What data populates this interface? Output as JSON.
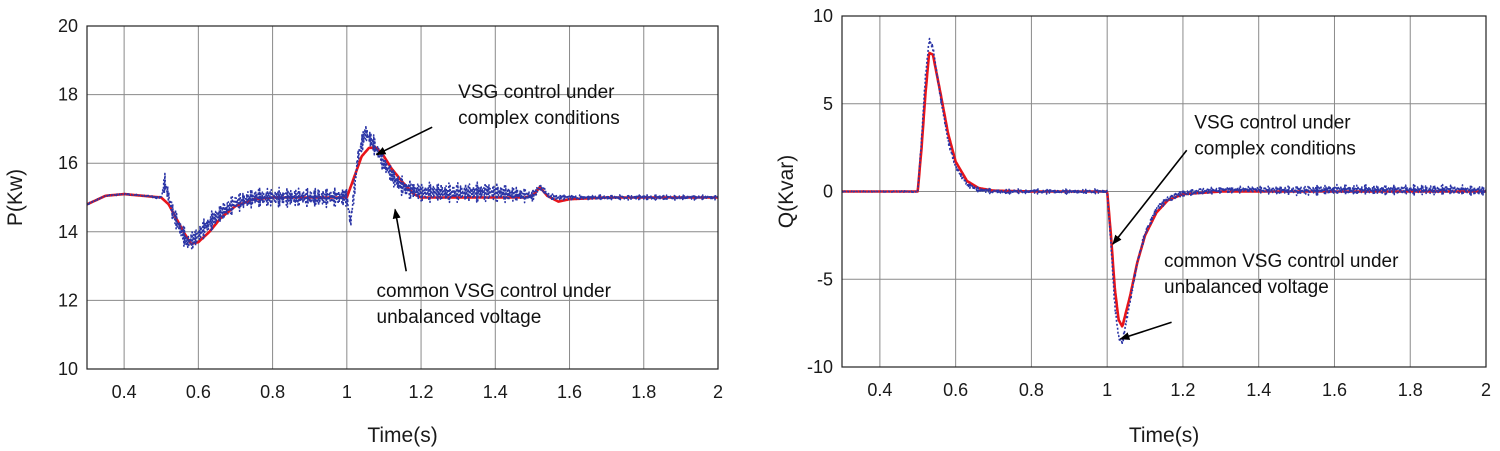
{
  "chart_data": [
    {
      "type": "line",
      "xlabel": "Time(s)",
      "ylabel": "P(Kw)",
      "xlim": [
        0.3,
        2
      ],
      "ylim": [
        10,
        20
      ],
      "xticks": [
        0.4,
        0.6,
        0.8,
        1,
        1.2,
        1.4,
        1.6,
        1.8,
        2
      ],
      "xtick_labels": [
        "0.4",
        "0.6",
        "0.8",
        "1",
        "1.2",
        "1.4",
        "1.6",
        "1.8",
        "2"
      ],
      "yticks": [
        10,
        12,
        14,
        16,
        18,
        20
      ],
      "ytick_labels": [
        "10",
        "12",
        "14",
        "16",
        "18",
        "20"
      ],
      "grid": true,
      "series": [
        {
          "name": "VSG control under complex conditions",
          "color": "#e8141a",
          "style": "solid",
          "x": [
            0.3,
            0.35,
            0.4,
            0.45,
            0.5,
            0.52,
            0.54,
            0.56,
            0.58,
            0.6,
            0.63,
            0.66,
            0.7,
            0.75,
            0.8,
            0.85,
            0.9,
            0.95,
            1.0,
            1.02,
            1.04,
            1.06,
            1.08,
            1.1,
            1.12,
            1.15,
            1.18,
            1.2,
            1.25,
            1.3,
            1.4,
            1.48,
            1.5,
            1.52,
            1.54,
            1.57,
            1.6,
            1.7,
            1.8,
            1.9,
            2.0
          ],
          "y": [
            14.8,
            15.05,
            15.1,
            15.05,
            15.0,
            14.8,
            14.4,
            14.0,
            13.65,
            13.7,
            14.0,
            14.4,
            14.75,
            14.95,
            15.0,
            15.0,
            15.0,
            15.0,
            15.0,
            15.6,
            16.2,
            16.45,
            16.45,
            16.2,
            15.85,
            15.45,
            15.1,
            15.0,
            15.0,
            15.0,
            15.0,
            15.0,
            15.05,
            15.3,
            15.05,
            14.88,
            14.95,
            15.0,
            15.0,
            15.0,
            15.0
          ]
        },
        {
          "name": "common VSG control under unbalanced voltage",
          "color": "#2b35a6",
          "style": "dotted",
          "x": [
            0.3,
            0.35,
            0.4,
            0.45,
            0.5,
            0.51,
            0.53,
            0.55,
            0.57,
            0.59,
            0.62,
            0.66,
            0.7,
            0.75,
            0.8,
            0.9,
            1.0,
            1.01,
            1.03,
            1.05,
            1.07,
            1.1,
            1.13,
            1.16,
            1.2,
            1.3,
            1.4,
            1.5,
            1.52,
            1.55,
            1.6,
            1.7,
            1.8,
            1.9,
            2.0
          ],
          "y": [
            14.8,
            15.05,
            15.1,
            15.05,
            15.0,
            15.45,
            14.6,
            14.1,
            13.7,
            13.8,
            14.15,
            14.55,
            14.85,
            15.0,
            15.0,
            15.0,
            15.0,
            14.25,
            16.2,
            16.9,
            16.6,
            16.0,
            15.5,
            15.25,
            15.15,
            15.15,
            15.15,
            15.05,
            15.3,
            15.0,
            15.0,
            15.0,
            15.0,
            15.0,
            15.0
          ],
          "noise_amplitude": [
            0.02,
            0.02,
            0.02,
            0.02,
            0.05,
            0.3,
            0.3,
            0.3,
            0.3,
            0.3,
            0.3,
            0.3,
            0.3,
            0.3,
            0.3,
            0.3,
            0.3,
            0.3,
            0.3,
            0.3,
            0.3,
            0.3,
            0.3,
            0.3,
            0.3,
            0.3,
            0.3,
            0.2,
            0.1,
            0.1,
            0.08,
            0.08,
            0.08,
            0.08,
            0.08
          ]
        }
      ],
      "annotations": [
        {
          "lines": [
            "VSG control under",
            "complex conditions"
          ],
          "x": 1.3,
          "y": 17.9,
          "arrow_to": [
            1.08,
            16.25
          ],
          "arrow_from": [
            1.23,
            17.05
          ]
        },
        {
          "lines": [
            "common VSG control under",
            "unbalanced voltage"
          ],
          "x": 1.08,
          "y": 12.1,
          "arrow_to": [
            1.13,
            14.65
          ],
          "arrow_from": [
            1.16,
            12.85
          ]
        }
      ]
    },
    {
      "type": "line",
      "xlabel": "Time(s)",
      "ylabel": "Q(Kvar)",
      "xlim": [
        0.3,
        2
      ],
      "ylim": [
        -10,
        10
      ],
      "xticks": [
        0.4,
        0.6,
        0.8,
        1,
        1.2,
        1.4,
        1.6,
        1.8,
        2
      ],
      "xtick_labels": [
        "0.4",
        "0.6",
        "0.8",
        "1",
        "1.2",
        "1.4",
        "1.6",
        "1.8",
        "2"
      ],
      "yticks": [
        -10,
        -5,
        0,
        5,
        10
      ],
      "ytick_labels": [
        "-10",
        "-5",
        "0",
        "5",
        "10"
      ],
      "grid": true,
      "series": [
        {
          "name": "VSG control under complex conditions",
          "color": "#e8141a",
          "style": "solid",
          "x": [
            0.3,
            0.4,
            0.5,
            0.51,
            0.52,
            0.53,
            0.54,
            0.56,
            0.58,
            0.6,
            0.63,
            0.66,
            0.7,
            0.8,
            0.9,
            1.0,
            1.01,
            1.02,
            1.03,
            1.04,
            1.06,
            1.08,
            1.1,
            1.13,
            1.16,
            1.2,
            1.3,
            1.4,
            1.5,
            1.6,
            1.7,
            1.8,
            1.9,
            2.0
          ],
          "y": [
            0.0,
            0.0,
            0.0,
            2.5,
            5.5,
            7.9,
            7.8,
            5.6,
            3.3,
            1.7,
            0.6,
            0.2,
            0.05,
            0.0,
            0.0,
            0.0,
            -2.5,
            -5.5,
            -7.3,
            -7.7,
            -6.0,
            -4.0,
            -2.5,
            -1.2,
            -0.5,
            -0.15,
            0.0,
            0.0,
            0.0,
            0.0,
            0.0,
            0.0,
            0.0,
            0.0
          ]
        },
        {
          "name": "common VSG control under unbalanced voltage",
          "color": "#2b35a6",
          "style": "dotted",
          "x": [
            0.3,
            0.4,
            0.5,
            0.51,
            0.52,
            0.53,
            0.54,
            0.56,
            0.58,
            0.6,
            0.63,
            0.66,
            0.7,
            0.8,
            0.9,
            1.0,
            1.01,
            1.02,
            1.03,
            1.04,
            1.06,
            1.08,
            1.1,
            1.13,
            1.16,
            1.2,
            1.3,
            1.4,
            1.5,
            1.6,
            1.7,
            1.8,
            1.9,
            2.0
          ],
          "y": [
            0.0,
            0.0,
            0.0,
            3.0,
            6.5,
            8.6,
            8.2,
            5.4,
            2.9,
            1.4,
            0.4,
            0.1,
            0.0,
            0.0,
            0.0,
            0.0,
            -3.0,
            -6.5,
            -8.3,
            -8.6,
            -6.3,
            -4.0,
            -2.4,
            -1.0,
            -0.4,
            -0.1,
            0.1,
            0.1,
            0.05,
            0.1,
            0.1,
            0.1,
            0.1,
            0.05
          ],
          "noise_amplitude": [
            0.03,
            0.03,
            0.05,
            0.2,
            0.2,
            0.2,
            0.2,
            0.2,
            0.2,
            0.15,
            0.15,
            0.15,
            0.15,
            0.15,
            0.15,
            0.15,
            0.2,
            0.2,
            0.2,
            0.2,
            0.2,
            0.2,
            0.2,
            0.2,
            0.2,
            0.2,
            0.2,
            0.2,
            0.3,
            0.3,
            0.3,
            0.3,
            0.3,
            0.3
          ]
        }
      ],
      "annotations": [
        {
          "lines": [
            "VSG control under",
            "complex conditions"
          ],
          "x": 1.23,
          "y": 3.6,
          "arrow_to": [
            1.015,
            -3.0
          ],
          "arrow_from": [
            1.21,
            2.35
          ]
        },
        {
          "lines": [
            "common VSG control under",
            "unbalanced voltage"
          ],
          "x": 1.15,
          "y": -4.3,
          "arrow_to": [
            1.035,
            -8.4
          ],
          "arrow_from": [
            1.17,
            -7.45
          ]
        }
      ]
    }
  ]
}
